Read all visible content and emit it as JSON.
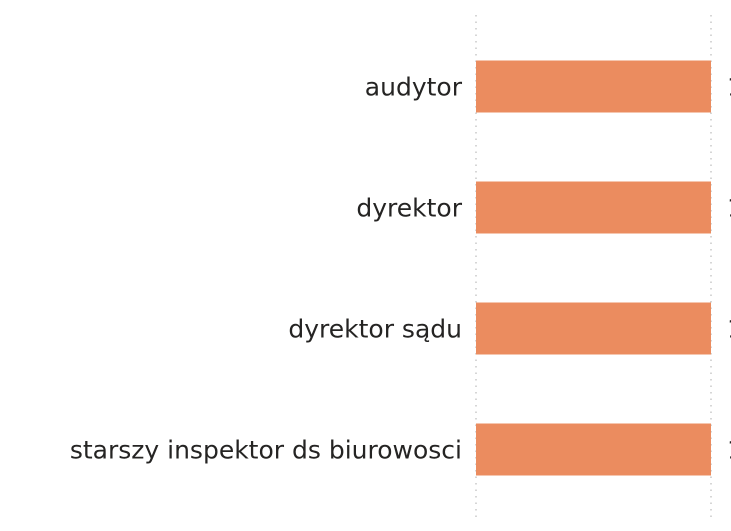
{
  "chart_data": {
    "type": "hbar",
    "categories": [
      "audytor",
      "dyrektor",
      "dyrektor sądu",
      "starszy inspektor ds biurowosci"
    ],
    "values": [
      1,
      1,
      1,
      1
    ],
    "color": "#eb8c5f",
    "xlim": [
      0,
      1
    ],
    "grid": true
  }
}
